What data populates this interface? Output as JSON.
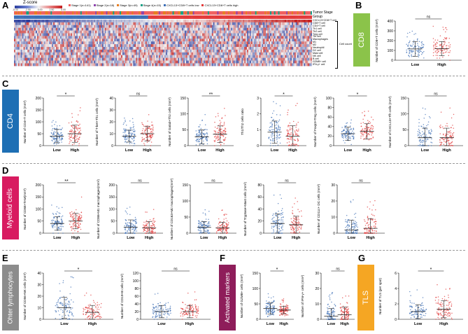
{
  "panels": {
    "A": {
      "letter": "A",
      "zscore_title": "Z-score",
      "zscore_ticks": [
        "-5.00",
        "-2.50",
        "0.00",
        "2.50",
        "5.00"
      ],
      "legend_items": [
        "Stage 1(n=141)",
        "Stage 2(n=18)",
        "Stage 3(n=49)",
        "Stage 4(n=15)",
        "CXCL13+CD8+T cells low",
        "CXCL13+CD8+T cells high"
      ],
      "track_labels": [
        "Tumor Stage",
        "Group"
      ],
      "row_labels": [
        "CXCL13+CD8+T cell",
        "CD8+T cell",
        "CD4+T cell",
        "Th1 cell",
        "Th2 cell",
        "Treg cell",
        "Tfh cell",
        "Macrophages",
        "M1",
        "M2",
        "Neutrophil",
        "DC cell",
        "Mast cell",
        "NK cell",
        "B cell",
        "GZMB+ cell",
        "IFN-γ+ cell"
      ],
      "bracket_label": "Cell count"
    },
    "B": {
      "letter": "B",
      "tag": "CD8",
      "tag_color": "#8bc34a"
    },
    "C": {
      "letter": "C",
      "tag": "CD4",
      "tag_color": "#1e6fb4"
    },
    "D": {
      "letter": "D",
      "tag": "Myeloid cells",
      "tag_color": "#d81b60"
    },
    "E": {
      "letter": "E",
      "tag": "Ohter lymphocytes",
      "tag_color": "#8c8c8c"
    },
    "F": {
      "letter": "F",
      "tag": "Activated markers",
      "tag_color": "#8e1d5a"
    },
    "G": {
      "letter": "G",
      "tag": "TLS",
      "tag_color": "#f5a623"
    }
  },
  "group_labels": [
    "Low",
    "High"
  ],
  "colors": {
    "low": "#3d6fb6",
    "high": "#e23a3a"
  },
  "chart_data": [
    {
      "id": "b1",
      "type": "scatter",
      "ylabel": "Number of CD8+T cells (mm²)",
      "ylim": [
        0,
        400
      ],
      "yticks": [
        0,
        100,
        200,
        300,
        400
      ],
      "categories": [
        "Low",
        "High"
      ],
      "series": [
        {
          "name": "Low",
          "mean": 115,
          "sd": 75
        },
        {
          "name": "High",
          "mean": 118,
          "sd": 72
        }
      ],
      "significance": "ns"
    },
    {
      "id": "c1",
      "type": "scatter",
      "ylabel": "Number of CD4+T cells (mm²)",
      "ylim": [
        0,
        200
      ],
      "yticks": [
        0,
        50,
        100,
        150,
        200
      ],
      "categories": [
        "Low",
        "High"
      ],
      "series": [
        {
          "name": "Low",
          "mean": 40,
          "sd": 28
        },
        {
          "name": "High",
          "mean": 50,
          "sd": 36
        }
      ],
      "significance": "*"
    },
    {
      "id": "c2",
      "type": "scatter",
      "ylabel": "Number of T-bet+Th1 cells (mm²)",
      "ylim": [
        0,
        40
      ],
      "yticks": [
        0,
        10,
        20,
        30,
        40
      ],
      "categories": [
        "Low",
        "High"
      ],
      "series": [
        {
          "name": "Low",
          "mean": 8,
          "sd": 5
        },
        {
          "name": "High",
          "mean": 10,
          "sd": 6
        }
      ],
      "significance": "ns"
    },
    {
      "id": "c3",
      "type": "scatter",
      "ylabel": "Number of Gata3+Th2 cells (mm²)",
      "ylim": [
        0,
        150
      ],
      "yticks": [
        0,
        50,
        100,
        150
      ],
      "categories": [
        "Low",
        "High"
      ],
      "series": [
        {
          "name": "Low",
          "mean": 28,
          "sd": 22
        },
        {
          "name": "High",
          "mean": 36,
          "sd": 26
        }
      ],
      "significance": "**"
    },
    {
      "id": "c4",
      "type": "scatter",
      "ylabel": "Th1/Th2 cells ratio",
      "ylim": [
        0,
        3
      ],
      "yticks": [
        0,
        1,
        2,
        3
      ],
      "categories": [
        "Low",
        "High"
      ],
      "series": [
        {
          "name": "Low",
          "mean": 0.85,
          "sd": 0.7
        },
        {
          "name": "High",
          "mean": 0.6,
          "sd": 0.65
        }
      ],
      "significance": "*"
    },
    {
      "id": "c5",
      "type": "scatter",
      "ylabel": "Number of Foxp3+Treg cells (mm²)",
      "ylim": [
        0,
        100
      ],
      "yticks": [
        0,
        20,
        40,
        60,
        80,
        100
      ],
      "categories": [
        "Low",
        "High"
      ],
      "series": [
        {
          "name": "Low",
          "mean": 25,
          "sd": 14
        },
        {
          "name": "High",
          "mean": 30,
          "sd": 16
        }
      ],
      "significance": "*"
    },
    {
      "id": "c6",
      "type": "scatter",
      "ylabel": "Number of CXCL13+Tfh cells (mm²)",
      "ylim": [
        0,
        150
      ],
      "yticks": [
        0,
        50,
        100,
        150
      ],
      "categories": [
        "Low",
        "High"
      ],
      "series": [
        {
          "name": "Low",
          "mean": 25,
          "sd": 30
        },
        {
          "name": "High",
          "mean": 25,
          "sd": 30
        }
      ],
      "significance": "ns"
    },
    {
      "id": "d1",
      "type": "scatter",
      "ylabel": "Number of CD68+TAM(mm²)",
      "ylim": [
        0,
        200
      ],
      "yticks": [
        0,
        50,
        100,
        150,
        200
      ],
      "categories": [
        "Low",
        "High"
      ],
      "series": [
        {
          "name": "Low",
          "mean": 40,
          "sd": 28
        },
        {
          "name": "High",
          "mean": 50,
          "sd": 32
        }
      ],
      "significance": "**"
    },
    {
      "id": "d2",
      "type": "scatter",
      "ylabel": "Number of CD86+M1 macrophages(mm²)",
      "ylim": [
        0,
        200
      ],
      "yticks": [
        0,
        50,
        100,
        150,
        200
      ],
      "categories": [
        "Low",
        "High"
      ],
      "series": [
        {
          "name": "Low",
          "mean": 25,
          "sd": 30
        },
        {
          "name": "High",
          "mean": 22,
          "sd": 26
        }
      ],
      "significance": "ns"
    },
    {
      "id": "d3",
      "type": "scatter",
      "ylabel": "Number of CD163+M2 macrophages(mm²)",
      "ylim": [
        0,
        150
      ],
      "yticks": [
        0,
        50,
        100,
        150
      ],
      "categories": [
        "Low",
        "High"
      ],
      "series": [
        {
          "name": "Low",
          "mean": 18,
          "sd": 18
        },
        {
          "name": "High",
          "mean": 16,
          "sd": 18
        }
      ],
      "significance": "ns"
    },
    {
      "id": "d4",
      "type": "scatter",
      "ylabel": "Number of Tryptase+Mast cells (mm²)",
      "ylim": [
        0,
        80
      ],
      "yticks": [
        0,
        20,
        40,
        60,
        80
      ],
      "categories": [
        "Low",
        "High"
      ],
      "series": [
        {
          "name": "Low",
          "mean": 16,
          "sd": 16
        },
        {
          "name": "High",
          "mean": 14,
          "sd": 14
        }
      ],
      "significance": "ns"
    },
    {
      "id": "d5",
      "type": "scatter",
      "ylabel": "Number of CD11c+ DC cells (mm²)",
      "ylim": [
        0,
        30
      ],
      "yticks": [
        0,
        10,
        20,
        30
      ],
      "categories": [
        "Low",
        "High"
      ],
      "series": [
        {
          "name": "Low",
          "mean": 2,
          "sd": 6
        },
        {
          "name": "High",
          "mean": 3,
          "sd": 6
        }
      ],
      "significance": "ns"
    },
    {
      "id": "e1",
      "type": "scatter",
      "ylabel": "Number of CD56+NK cells (mm²)",
      "ylim": [
        0,
        40
      ],
      "yticks": [
        0,
        10,
        20,
        30,
        40
      ],
      "categories": [
        "Low",
        "High"
      ],
      "series": [
        {
          "name": "Low",
          "mean": 10,
          "sd": 9
        },
        {
          "name": "High",
          "mean": 6,
          "sd": 6
        }
      ],
      "significance": "*"
    },
    {
      "id": "e2",
      "type": "scatter",
      "ylabel": "Number of CD19+B cells (mm²)",
      "ylim": [
        0,
        120
      ],
      "yticks": [
        0,
        20,
        40,
        60,
        80,
        100,
        120
      ],
      "categories": [
        "Low",
        "High"
      ],
      "series": [
        {
          "name": "Low",
          "mean": 20,
          "sd": 16
        },
        {
          "name": "High",
          "mean": 20,
          "sd": 16
        }
      ],
      "significance": "ns"
    },
    {
      "id": "f1",
      "type": "scatter",
      "ylabel": "Number of GZMB+ cells (mm²)",
      "ylim": [
        0,
        150
      ],
      "yticks": [
        0,
        50,
        100,
        150
      ],
      "categories": [
        "Low",
        "High"
      ],
      "series": [
        {
          "name": "Low",
          "mean": 35,
          "sd": 18
        },
        {
          "name": "High",
          "mean": 30,
          "sd": 12
        }
      ],
      "significance": "*"
    },
    {
      "id": "f2",
      "type": "scatter",
      "ylabel": "Number of IFN-γ+ cells (mm²)",
      "ylim": [
        0,
        30
      ],
      "yticks": [
        0,
        10,
        20,
        30
      ],
      "categories": [
        "Low",
        "High"
      ],
      "series": [
        {
          "name": "Low",
          "mean": 2,
          "sd": 5
        },
        {
          "name": "High",
          "mean": 3,
          "sd": 5
        }
      ],
      "significance": "ns"
    },
    {
      "id": "g1",
      "type": "scatter",
      "ylabel": "Number of TLS (per spot)",
      "ylim": [
        0,
        6
      ],
      "yticks": [
        0,
        2,
        4,
        6
      ],
      "categories": [
        "Low",
        "High"
      ],
      "series": [
        {
          "name": "Low",
          "mean": 1.0,
          "sd": 0.9
        },
        {
          "name": "High",
          "mean": 1.3,
          "sd": 1.1
        }
      ],
      "significance": "*"
    }
  ]
}
